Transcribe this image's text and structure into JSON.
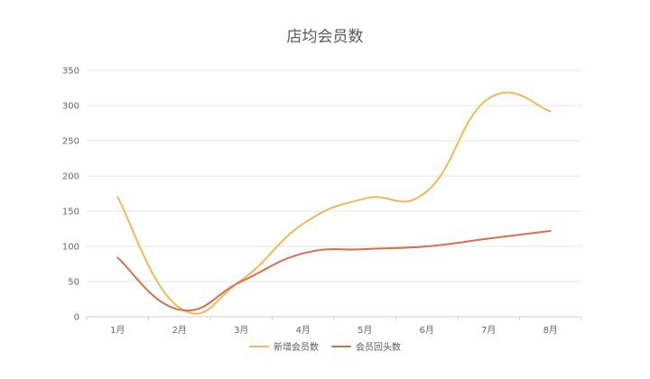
{
  "chart_data": {
    "type": "line",
    "title": "店均会员数",
    "categories": [
      "1月",
      "2月",
      "3月",
      "4月",
      "5月",
      "6月",
      "7月",
      "8月"
    ],
    "yticks": [
      0,
      50,
      100,
      150,
      200,
      250,
      300,
      350
    ],
    "ylim": [
      0,
      350
    ],
    "grid": true,
    "smooth": true,
    "legend_position": "bottom",
    "series": [
      {
        "name": "新增会员数",
        "color": "#F2B75B",
        "values": [
          170,
          13,
          52,
          132,
          168,
          178,
          310,
          292
        ]
      },
      {
        "name": "会员回头数",
        "color": "#D46F4D",
        "values": [
          84,
          10,
          50,
          90,
          96,
          100,
          111,
          122
        ]
      }
    ]
  }
}
